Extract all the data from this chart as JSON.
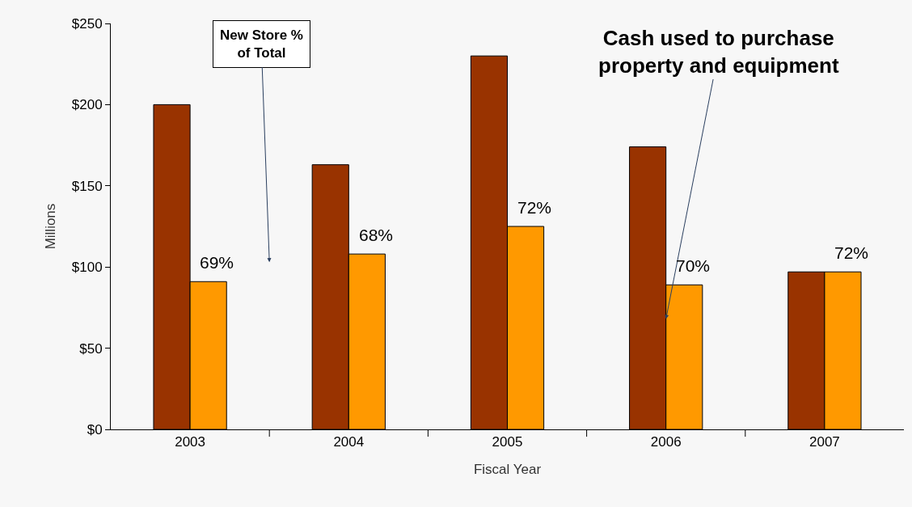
{
  "chart_data": {
    "type": "bar",
    "xlabel": "Fiscal Year",
    "ylabel": "Millions",
    "categories": [
      "2003",
      "2004",
      "2005",
      "2006",
      "2007"
    ],
    "series": [
      {
        "color": "#993300",
        "values": [
          200,
          163,
          230,
          174,
          97
        ]
      },
      {
        "color": "#ff9900",
        "values": [
          91,
          108,
          125,
          89,
          97
        ]
      }
    ],
    "ylim": [
      0,
      250
    ],
    "yticks": [
      {
        "value": 0,
        "label": "$0"
      },
      {
        "value": 50,
        "label": "$50"
      },
      {
        "value": 100,
        "label": "$100"
      },
      {
        "value": 150,
        "label": "$150"
      },
      {
        "value": 200,
        "label": "$200"
      },
      {
        "value": 250,
        "label": "$250"
      }
    ],
    "annotations": [
      "New Store %\nof Total",
      {
        "text": "Cash used to purchase\nproperty and equipment",
        "x": "2006",
        "y": 68
      },
      {
        "text": "69%",
        "x": "2003",
        "y": 91
      },
      {
        "text": "68%",
        "x": "2004",
        "y": 108
      },
      {
        "text": "72%",
        "x": "2005",
        "y": 125
      },
      {
        "text": "70%",
        "x": "2006",
        "y": 89
      },
      {
        "text": "72%",
        "x": "2007",
        "y": 97
      }
    ],
    "grid": false
  }
}
